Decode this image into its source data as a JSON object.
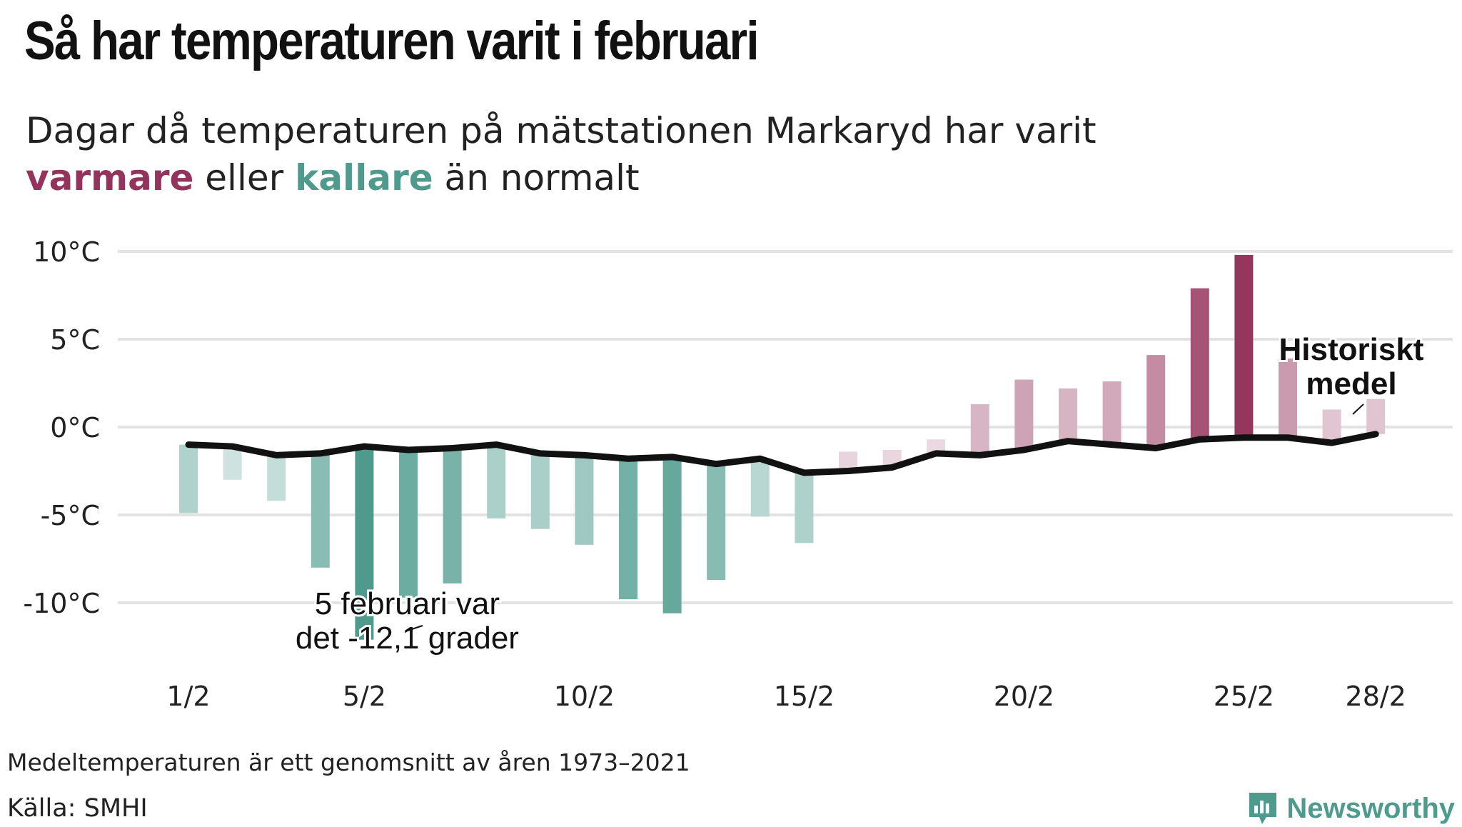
{
  "title": "Så har temperaturen varit i februari",
  "subtitle": {
    "line1": "Dagar då temperaturen på mätstationen Markaryd har varit",
    "warm_word": "varmare",
    "between": " eller ",
    "cold_word": "kallare",
    "after": " än normalt"
  },
  "footnote": "Medeltemperaturen är ett genomsnitt av åren 1973–2021",
  "source": "Källa: SMHI",
  "brand": {
    "name": "Newsworthy",
    "icon": "newsworthy-logo-icon"
  },
  "colors": {
    "warm": "#94345c",
    "cold": "#4e9b8d",
    "line": "#111111",
    "grid": "#e3e3e3"
  },
  "chart_data": {
    "type": "bar",
    "x": [
      1,
      2,
      3,
      4,
      5,
      6,
      7,
      8,
      9,
      10,
      11,
      12,
      13,
      14,
      15,
      16,
      17,
      18,
      19,
      20,
      21,
      22,
      23,
      24,
      25,
      26,
      27,
      28
    ],
    "x_tick_labels": [
      {
        "x": 1,
        "label": "1/2"
      },
      {
        "x": 5,
        "label": "5/2"
      },
      {
        "x": 10,
        "label": "10/2"
      },
      {
        "x": 15,
        "label": "15/2"
      },
      {
        "x": 20,
        "label": "20/2"
      },
      {
        "x": 25,
        "label": "25/2"
      },
      {
        "x": 28,
        "label": "28/2"
      }
    ],
    "y_ticks": [
      10,
      5,
      0,
      -5,
      -10
    ],
    "y_tick_labels": [
      "10°C",
      "5°C",
      "0°C",
      "-5°C",
      "-10°C"
    ],
    "ylim": [
      -12.5,
      11
    ],
    "series": [
      {
        "name": "Temperatur",
        "values": [
          -4.9,
          -3.0,
          -4.2,
          -8.0,
          -12.1,
          -9.7,
          -8.9,
          -5.2,
          -5.8,
          -6.7,
          -9.8,
          -10.6,
          -8.7,
          -5.1,
          -6.6,
          -1.4,
          -1.3,
          -0.7,
          1.3,
          2.7,
          2.2,
          2.6,
          4.1,
          7.9,
          9.8,
          3.9,
          1.0,
          1.6
        ]
      },
      {
        "name": "Historiskt medel",
        "values": [
          -1.0,
          -1.1,
          -1.6,
          -1.5,
          -1.1,
          -1.3,
          -1.2,
          -1.0,
          -1.5,
          -1.6,
          -1.8,
          -1.7,
          -2.1,
          -1.8,
          -2.6,
          -2.5,
          -2.3,
          -1.5,
          -1.6,
          -1.3,
          -0.8,
          -1.0,
          -1.2,
          -0.7,
          -0.6,
          -0.6,
          -0.9,
          -0.4
        ]
      }
    ],
    "annotations": [
      {
        "text_line1": "5 februari var",
        "text_line2": "det -12,1 grader",
        "x": 5
      },
      {
        "text_line1": "Historiskt",
        "text_line2": "medel",
        "x": 28
      }
    ]
  }
}
